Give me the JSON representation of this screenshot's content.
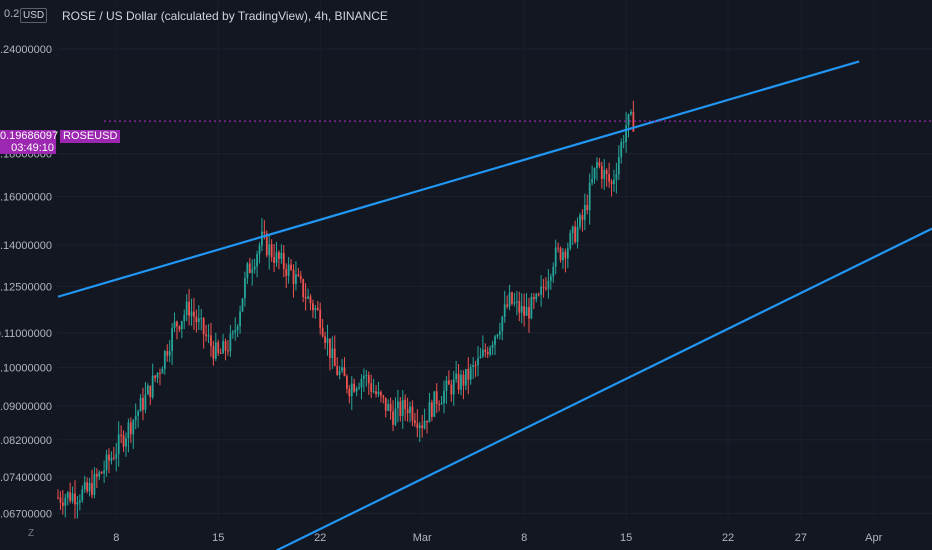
{
  "header": {
    "title": "ROSE / US Dollar (calculated by TradingView), 4h, BINANCE",
    "currency_badge": "USD",
    "top_clip_label": "0.2"
  },
  "last_price": {
    "value_label": "0.19686097",
    "countdown": "03:49:10",
    "symbol": "ROSEUSD",
    "value": 0.19686097
  },
  "bottom_left_label": "Z",
  "colors": {
    "background": "#131722",
    "up": "#26a69a",
    "down": "#ef5350",
    "trendline": "#2196f3",
    "price_line": "#9c27b0",
    "axis_text": "#b2b5be"
  },
  "chart_data": {
    "type": "candlestick",
    "title": "ROSE / US Dollar (calculated by TradingView), 4h, BINANCE",
    "scale": "log",
    "ylim": [
      0.064,
      0.265
    ],
    "xlim": [
      "2021-02-04",
      "2021-04-05"
    ],
    "y_ticks": [
      {
        "value": 0.24,
        "label": "0.24000000"
      },
      {
        "value": 0.18,
        "label": "0.18000000"
      },
      {
        "value": 0.16,
        "label": "0.16000000"
      },
      {
        "value": 0.14,
        "label": "0.14000000"
      },
      {
        "value": 0.125,
        "label": "0.12500000"
      },
      {
        "value": 0.11,
        "label": "0.11000000"
      },
      {
        "value": 0.1,
        "label": "0.10000000"
      },
      {
        "value": 0.09,
        "label": "0.09000000"
      },
      {
        "value": 0.082,
        "label": "0.08200000"
      },
      {
        "value": 0.074,
        "label": "0.07400000"
      },
      {
        "value": 0.067,
        "label": "0.06700000"
      }
    ],
    "x_ticks": [
      {
        "date": "2021-02-08",
        "label": "8"
      },
      {
        "date": "2021-02-15",
        "label": "15"
      },
      {
        "date": "2021-02-22",
        "label": "22"
      },
      {
        "date": "2021-03-01",
        "label": "Mar"
      },
      {
        "date": "2021-03-08",
        "label": "8"
      },
      {
        "date": "2021-03-15",
        "label": "15"
      },
      {
        "date": "2021-03-22",
        "label": "22"
      },
      {
        "date": "2021-03-27",
        "label": "27"
      },
      {
        "date": "2021-04-01",
        "label": "Apr"
      }
    ],
    "price_path": [
      [
        "2021-02-04",
        0.07
      ],
      [
        "2021-02-06",
        0.071
      ],
      [
        "2021-02-07",
        0.075
      ],
      [
        "2021-02-08",
        0.08
      ],
      [
        "2021-02-10",
        0.092
      ],
      [
        "2021-02-11",
        0.1
      ],
      [
        "2021-02-12",
        0.112
      ],
      [
        "2021-02-13",
        0.118
      ],
      [
        "2021-02-14",
        0.11
      ],
      [
        "2021-02-15",
        0.103
      ],
      [
        "2021-02-16",
        0.108
      ],
      [
        "2021-02-17",
        0.13
      ],
      [
        "2021-02-18",
        0.142
      ],
      [
        "2021-02-19",
        0.135
      ],
      [
        "2021-02-20",
        0.13
      ],
      [
        "2021-02-21",
        0.122
      ],
      [
        "2021-02-22",
        0.115
      ],
      [
        "2021-02-23",
        0.1
      ],
      [
        "2021-02-24",
        0.095
      ],
      [
        "2021-02-25",
        0.098
      ],
      [
        "2021-02-26",
        0.092
      ],
      [
        "2021-02-27",
        0.088
      ],
      [
        "2021-02-28",
        0.09
      ],
      [
        "2021-03-01",
        0.086
      ],
      [
        "2021-03-02",
        0.092
      ],
      [
        "2021-03-03",
        0.095
      ],
      [
        "2021-03-04",
        0.097
      ],
      [
        "2021-03-05",
        0.102
      ],
      [
        "2021-03-06",
        0.11
      ],
      [
        "2021-03-07",
        0.12
      ],
      [
        "2021-03-08",
        0.116
      ],
      [
        "2021-03-09",
        0.12
      ],
      [
        "2021-03-10",
        0.135
      ],
      [
        "2021-03-11",
        0.14
      ],
      [
        "2021-03-12",
        0.15
      ],
      [
        "2021-03-13",
        0.175
      ],
      [
        "2021-03-14",
        0.165
      ],
      [
        "2021-03-15",
        0.195
      ],
      [
        "2021-03-15T12:00",
        0.197
      ]
    ],
    "trendlines": [
      {
        "name": "upper",
        "from": [
          "2021-02-04",
          0.1215
        ],
        "to": [
          "2021-03-31",
          0.232
        ]
      },
      {
        "name": "lower",
        "from": [
          "2021-02-19",
          0.0605
        ],
        "to": [
          "2021-04-05",
          0.1465
        ]
      }
    ],
    "last_price_line": 0.19686097
  }
}
